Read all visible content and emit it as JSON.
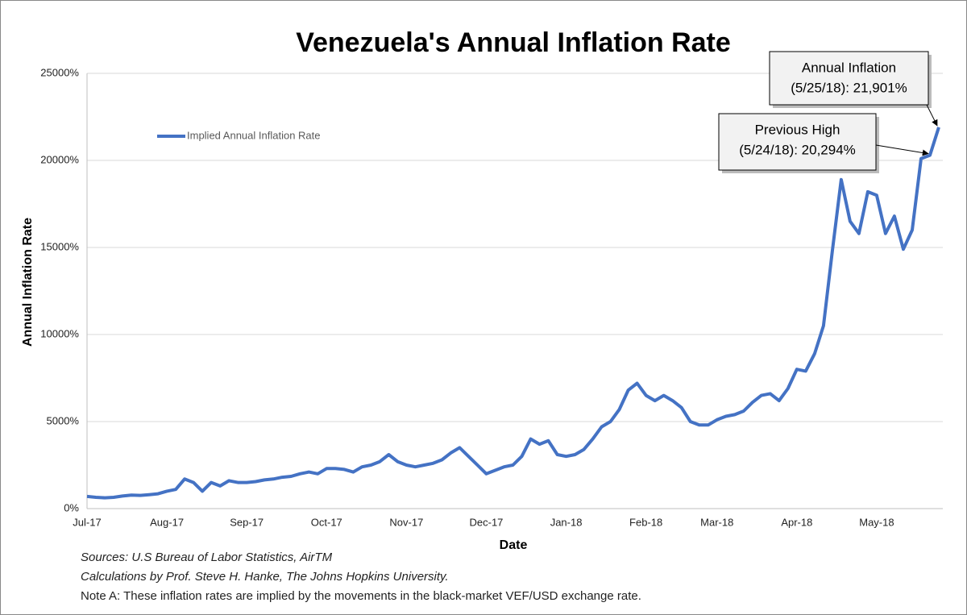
{
  "chart_data": {
    "type": "line",
    "title": "Venezuela's Annual Inflation Rate",
    "x_label": "Date",
    "y_label": "Annual Inflation Rate",
    "categories": [
      "Jul-17",
      null,
      null,
      null,
      null,
      null,
      null,
      null,
      null,
      "Aug-17",
      null,
      null,
      null,
      null,
      null,
      null,
      null,
      null,
      "Sep-17",
      null,
      null,
      null,
      null,
      null,
      null,
      null,
      null,
      "Oct-17",
      null,
      null,
      null,
      null,
      null,
      null,
      null,
      null,
      "Nov-17",
      null,
      null,
      null,
      null,
      null,
      null,
      null,
      null,
      "Dec-17",
      null,
      null,
      null,
      null,
      null,
      null,
      null,
      null,
      "Jan-18",
      null,
      null,
      null,
      null,
      null,
      null,
      null,
      null,
      "Feb-18",
      null,
      null,
      null,
      null,
      null,
      null,
      null,
      "Mar-18",
      null,
      null,
      null,
      null,
      null,
      null,
      null,
      null,
      "Apr-18",
      null,
      null,
      null,
      null,
      null,
      null,
      null,
      null,
      "May-18",
      null,
      null,
      null,
      null,
      null,
      null,
      null
    ],
    "series": [
      {
        "name": "Implied Annual Inflation Rate",
        "color": "#4472c4",
        "values": [
          700,
          650,
          620,
          650,
          720,
          780,
          760,
          800,
          850,
          1000,
          1100,
          1700,
          1500,
          1000,
          1500,
          1300,
          1600,
          1500,
          1500,
          1550,
          1650,
          1700,
          1800,
          1850,
          2000,
          2100,
          2000,
          2300,
          2300,
          2250,
          2100,
          2400,
          2500,
          2700,
          3100,
          2700,
          2500,
          2400,
          2500,
          2600,
          2800,
          3200,
          3500,
          3000,
          2500,
          2000,
          2200,
          2400,
          2500,
          3000,
          4000,
          3700,
          3900,
          3100,
          3000,
          3100,
          3400,
          4000,
          4700,
          5000,
          5700,
          6800,
          7200,
          6500,
          6200,
          6500,
          6200,
          5800,
          5000,
          4800,
          4800,
          5100,
          5300,
          5400,
          5600,
          6100,
          6500,
          6600,
          6200,
          6900,
          8000,
          7900,
          8900,
          10500,
          14800,
          18900,
          16500,
          15800,
          18200,
          18000,
          15800,
          16800,
          14900,
          16000,
          20100,
          20294,
          21901
        ]
      }
    ],
    "ylim": [
      0,
      25000
    ],
    "yticks": [
      {
        "value": 0,
        "label": "0%"
      },
      {
        "value": 5000,
        "label": "5000%"
      },
      {
        "value": 10000,
        "label": "10000%"
      },
      {
        "value": 15000,
        "label": "15000%"
      },
      {
        "value": 20000,
        "label": "20000%"
      },
      {
        "value": 25000,
        "label": "25000%"
      }
    ],
    "grid": true,
    "annotations": [
      {
        "lines": [
          "Annual Inflation",
          "(5/25/18): 21,901%"
        ]
      },
      {
        "lines": [
          "Previous High",
          "(5/24/18): 20,294%"
        ]
      }
    ],
    "notes": [
      "Sources: U.S Bureau of Labor Statistics, AirTM",
      "Calculations by Prof. Steve H. Hanke, The Johns Hopkins University.",
      "Note A: These inflation rates are implied by the movements in the black-market VEF/USD exchange rate."
    ]
  }
}
